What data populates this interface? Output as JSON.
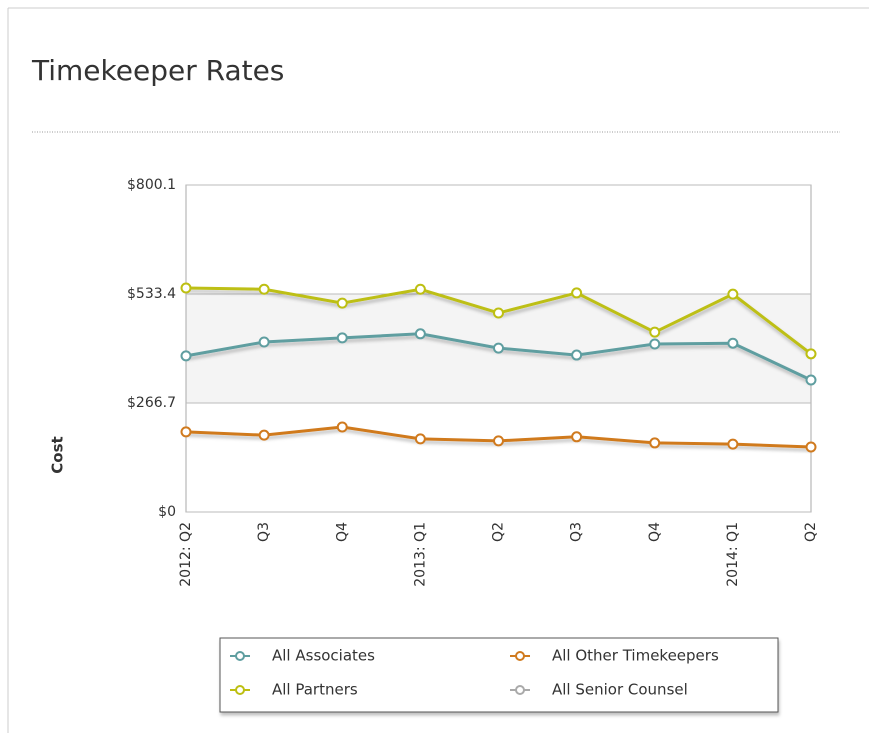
{
  "title": "Timekeeper Rates",
  "chart_data": {
    "type": "line",
    "y_label": "Cost",
    "categories": [
      "2012: Q2",
      "Q3",
      "Q4",
      "2013: Q1",
      "Q2",
      "Q3",
      "Q4",
      "2014: Q1",
      "Q2"
    ],
    "ylim": [
      0,
      800.1
    ],
    "yticks": [
      {
        "value": 0,
        "label": "$0"
      },
      {
        "value": 266.7,
        "label": "$266.7"
      },
      {
        "value": 533.4,
        "label": "$533.4"
      },
      {
        "value": 800.1,
        "label": "$800.1"
      }
    ],
    "series": [
      {
        "name": "All Associates",
        "color": "#5f9ea0",
        "values": [
          382,
          416,
          426,
          436,
          401,
          384,
          411,
          413,
          323
        ]
      },
      {
        "name": "All Other Timekeepers",
        "color": "#d07a1e",
        "values": [
          196,
          188,
          208,
          179,
          174,
          184,
          169,
          166,
          159
        ]
      },
      {
        "name": "All Partners",
        "color": "#bdbf12",
        "values": [
          548,
          545,
          511,
          545,
          487,
          536,
          440,
          533,
          387
        ]
      },
      {
        "name": "All Senior Counsel",
        "color": "#aaaaaa",
        "values": [
          null,
          null,
          null,
          null,
          null,
          null,
          null,
          null,
          null
        ]
      }
    ]
  }
}
